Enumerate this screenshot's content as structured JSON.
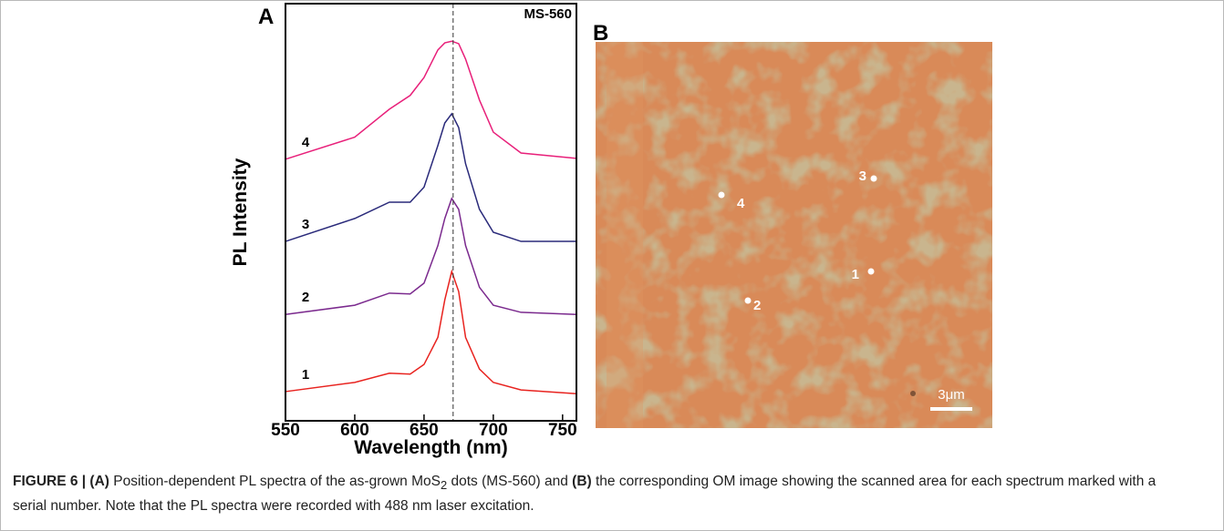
{
  "panel_labels": [
    "A",
    "B"
  ],
  "chart_data": {
    "type": "line",
    "title": "MS-560",
    "xlabel": "Wavelength (nm)",
    "ylabel": "PL Intensity",
    "x": [
      550,
      600,
      625,
      640,
      650,
      660,
      665,
      670,
      675,
      680,
      690,
      700,
      720,
      760
    ],
    "series": [
      {
        "name": "1",
        "color": "#e8231f",
        "values": [
          7,
          9.2,
          11.4,
          11.2,
          13.5,
          20,
          29,
          35.8,
          31,
          20,
          12.4,
          9.2,
          7.4,
          6.5
        ]
      },
      {
        "name": "2",
        "color": "#7b2a8e",
        "values": [
          25.5,
          27.7,
          30.6,
          30.4,
          33,
          42,
          48.5,
          53.3,
          50.7,
          42,
          32,
          27.7,
          26,
          25.5
        ]
      },
      {
        "name": "3",
        "color": "#2a2a7a",
        "values": [
          43,
          48.5,
          52.4,
          52.4,
          56,
          66,
          71.4,
          73.6,
          70.3,
          61.6,
          50.7,
          45.2,
          43,
          43
        ]
      },
      {
        "name": "4",
        "color": "#e8207a",
        "values": [
          62.7,
          68,
          74.7,
          78,
          82.3,
          88.9,
          90.6,
          91,
          90.4,
          86.7,
          76.9,
          69.2,
          64.2,
          62.9
        ]
      }
    ],
    "reference_line": 671,
    "xlim": [
      550,
      760
    ],
    "xticks": [
      550,
      600,
      650,
      700,
      750
    ],
    "ylim": [
      0,
      100
    ]
  },
  "image": {
    "points": [
      "1",
      "2",
      "3",
      "4"
    ],
    "scale_bar": "3μm"
  },
  "caption": {
    "label": "FIGURE 6 | (A)",
    "text1": " Position-dependent PL spectra of the as-grown MoS",
    "subscript": "2",
    "text2": " dots (MS-560) and ",
    "label_b": "(B)",
    "text3": " the corresponding OM image showing the scanned area for each spectrum marked with a serial number. Note that the PL spectra were recorded with 488 nm laser excitation."
  }
}
